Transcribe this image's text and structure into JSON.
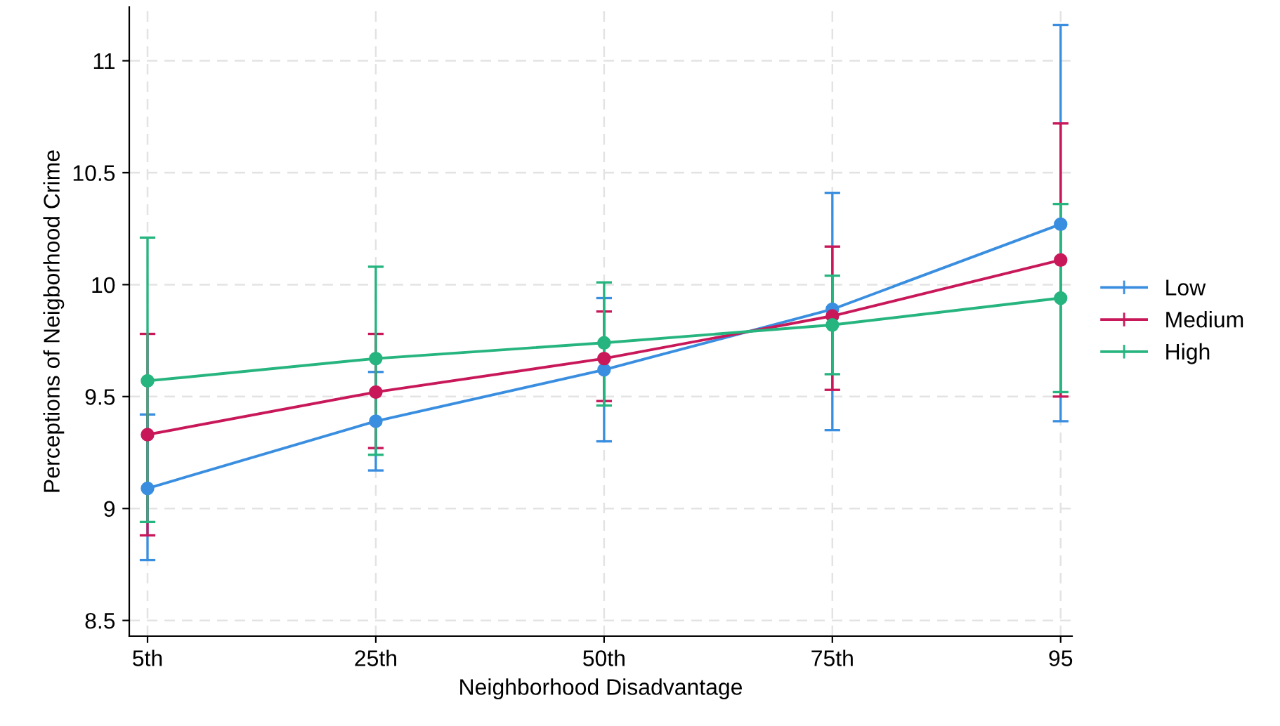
{
  "chart_data": {
    "type": "line",
    "xlabel": "Neighborhood Disadvantage",
    "ylabel": "Perceptions of Neigborhood Crime",
    "categories": [
      "5th",
      "25th",
      "50th",
      "75th",
      "95"
    ],
    "ylim": [
      8.43,
      11.24
    ],
    "yticks": [
      8.5,
      9,
      9.5,
      10,
      10.5,
      11
    ],
    "grid": true,
    "legend": "right",
    "marker": "circle",
    "line_style": "solid",
    "series": [
      {
        "name": "Low",
        "color": "#3a8ee0",
        "values": [
          9.09,
          9.39,
          9.62,
          9.89,
          10.27
        ],
        "errors": [
          [
            8.77,
            9.42
          ],
          [
            9.17,
            9.61
          ],
          [
            9.3,
            9.94
          ],
          [
            9.35,
            10.41
          ],
          [
            9.39,
            11.16
          ]
        ]
      },
      {
        "name": "Medium",
        "color": "#c8185a",
        "values": [
          9.33,
          9.52,
          9.67,
          9.86,
          10.11
        ],
        "errors": [
          [
            8.88,
            9.78
          ],
          [
            9.27,
            9.78
          ],
          [
            9.48,
            9.88
          ],
          [
            9.53,
            10.17
          ],
          [
            9.5,
            10.72
          ]
        ]
      },
      {
        "name": "High",
        "color": "#26b47f",
        "values": [
          9.57,
          9.67,
          9.74,
          9.82,
          9.94
        ],
        "errors": [
          [
            8.94,
            10.21
          ],
          [
            9.24,
            10.08
          ],
          [
            9.46,
            10.01
          ],
          [
            9.6,
            10.04
          ],
          [
            9.52,
            10.36
          ]
        ]
      }
    ]
  }
}
